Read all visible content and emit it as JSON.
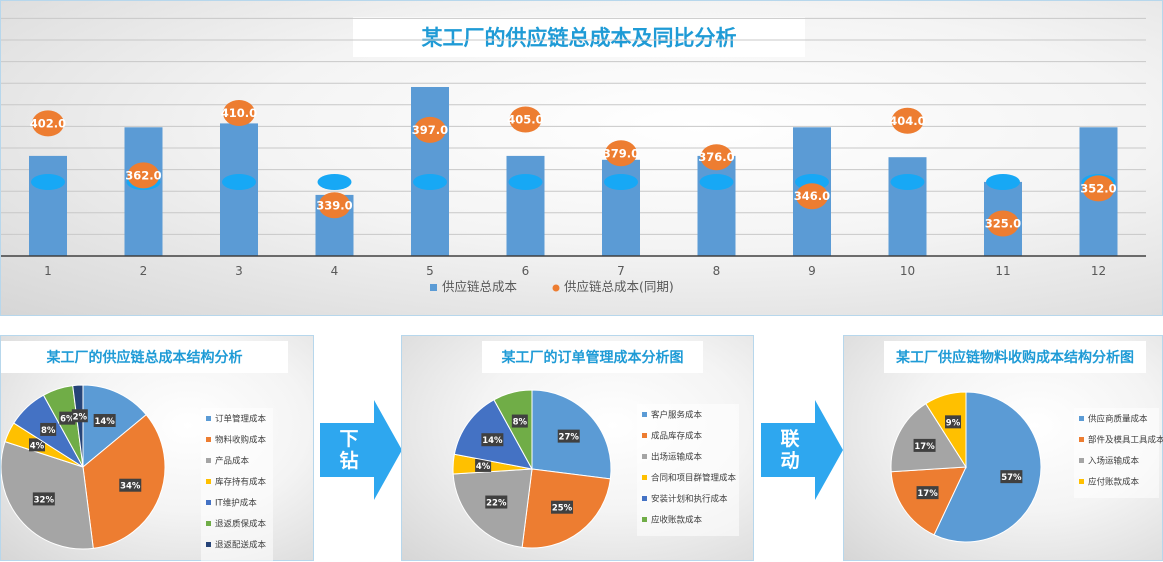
{
  "main": {
    "title": "某工厂的供应链总成本及同比分析",
    "legend_current": "供应链总成本",
    "legend_prior": "供应链总成本(同期)"
  },
  "colors": {
    "bar": "#5b9bd5",
    "prior_marker": "#ed7d31",
    "current_marker": "#17a8f5",
    "title_text": "#1f9bd6",
    "arrow": "#2ea7ef"
  },
  "chart_data": [
    {
      "type": "bar",
      "categories": [
        "1",
        "2",
        "3",
        "4",
        "5",
        "6",
        "7",
        "8",
        "9",
        "10",
        "11",
        "12"
      ],
      "series": [
        {
          "name": "供应链总成本",
          "values": [
            377,
            399,
            402,
            347,
            430,
            377,
            374,
            377,
            399,
            376,
            357,
            399
          ]
        },
        {
          "name": "供应链总成本(同期)",
          "values": [
            402.0,
            362.0,
            410.0,
            339.0,
            397.0,
            405.0,
            379.0,
            376.0,
            346.0,
            404.0,
            325.0,
            352.0
          ],
          "data_labels": [
            "402.0",
            "362.0",
            "410.0",
            "339.0",
            "397.0",
            "405.0",
            "379.0",
            "376.0",
            "346.0",
            "404.0",
            "325.0",
            "352.0"
          ]
        }
      ],
      "title": "某工厂的供应链总成本及同比分析",
      "legend": "bottom",
      "grid": true
    },
    {
      "type": "pie",
      "title": "某工厂的供应链总成本结构分析",
      "labels": [
        "订单管理成本",
        "物料收购成本",
        "产品成本",
        "库存持有成本",
        "IT维护成本",
        "退返质保成本",
        "退返配送成本"
      ],
      "values": [
        14,
        34,
        32,
        4,
        8,
        6,
        2
      ],
      "data_labels": [
        "14%",
        "34%",
        "32%",
        "4%",
        "8%",
        "6%",
        "2%"
      ],
      "colors": [
        "#5b9bd5",
        "#ed7d31",
        "#a5a5a5",
        "#ffc000",
        "#4472c4",
        "#70ad47",
        "#264478"
      ]
    },
    {
      "type": "pie",
      "title": "某工厂的订单管理成本分析图",
      "labels": [
        "客户服务成本",
        "成品库存成本",
        "出场运输成本",
        "合同和项目群管理成本",
        "安装计划和执行成本",
        "应收账款成本"
      ],
      "values": [
        27,
        25,
        22,
        4,
        14,
        8
      ],
      "data_labels": [
        "27%",
        "25%",
        "22%",
        "4%",
        "14%",
        "8%"
      ],
      "colors": [
        "#5b9bd5",
        "#ed7d31",
        "#a5a5a5",
        "#ffc000",
        "#4472c4",
        "#70ad47"
      ]
    },
    {
      "type": "pie",
      "title": "某工厂供应链物料收购成本结构分析图",
      "labels": [
        "供应商质量成本",
        "部件及模具工具成本",
        "入场运输成本",
        "应付账款成本"
      ],
      "values": [
        57,
        17,
        17,
        9
      ],
      "data_labels": [
        "57%",
        "17%",
        "17%",
        "9%"
      ],
      "colors": [
        "#5b9bd5",
        "#ed7d31",
        "#a5a5a5",
        "#ffc000"
      ]
    }
  ],
  "arrows": {
    "drill": "下钻",
    "link": "联动"
  }
}
